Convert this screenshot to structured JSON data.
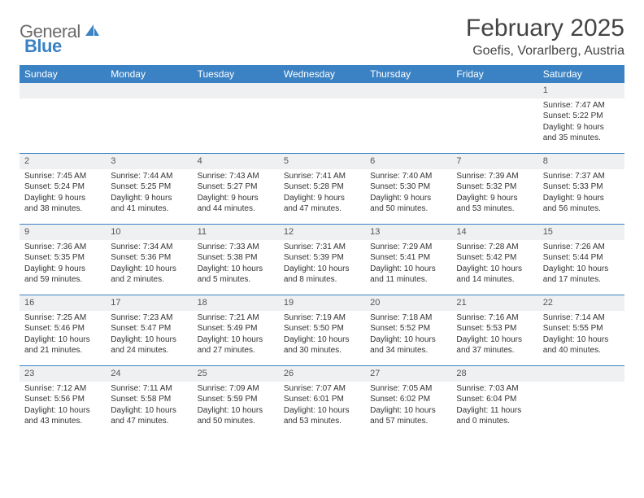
{
  "logo": {
    "textA": "General",
    "textB": "Blue"
  },
  "title": "February 2025",
  "location": "Goefis, Vorarlberg, Austria",
  "colors": {
    "header_bg": "#3b82c4",
    "header_text": "#ffffff",
    "daynum_bg": "#eef0f1",
    "border": "#3b82c4",
    "text": "#333333",
    "logo_gray": "#6b6b6b",
    "logo_blue": "#3b82c4"
  },
  "weekdays": [
    "Sunday",
    "Monday",
    "Tuesday",
    "Wednesday",
    "Thursday",
    "Friday",
    "Saturday"
  ],
  "weeks": [
    [
      null,
      null,
      null,
      null,
      null,
      null,
      {
        "n": "1",
        "sunrise": "Sunrise: 7:47 AM",
        "sunset": "Sunset: 5:22 PM",
        "day1": "Daylight: 9 hours",
        "day2": "and 35 minutes."
      }
    ],
    [
      {
        "n": "2",
        "sunrise": "Sunrise: 7:45 AM",
        "sunset": "Sunset: 5:24 PM",
        "day1": "Daylight: 9 hours",
        "day2": "and 38 minutes."
      },
      {
        "n": "3",
        "sunrise": "Sunrise: 7:44 AM",
        "sunset": "Sunset: 5:25 PM",
        "day1": "Daylight: 9 hours",
        "day2": "and 41 minutes."
      },
      {
        "n": "4",
        "sunrise": "Sunrise: 7:43 AM",
        "sunset": "Sunset: 5:27 PM",
        "day1": "Daylight: 9 hours",
        "day2": "and 44 minutes."
      },
      {
        "n": "5",
        "sunrise": "Sunrise: 7:41 AM",
        "sunset": "Sunset: 5:28 PM",
        "day1": "Daylight: 9 hours",
        "day2": "and 47 minutes."
      },
      {
        "n": "6",
        "sunrise": "Sunrise: 7:40 AM",
        "sunset": "Sunset: 5:30 PM",
        "day1": "Daylight: 9 hours",
        "day2": "and 50 minutes."
      },
      {
        "n": "7",
        "sunrise": "Sunrise: 7:39 AM",
        "sunset": "Sunset: 5:32 PM",
        "day1": "Daylight: 9 hours",
        "day2": "and 53 minutes."
      },
      {
        "n": "8",
        "sunrise": "Sunrise: 7:37 AM",
        "sunset": "Sunset: 5:33 PM",
        "day1": "Daylight: 9 hours",
        "day2": "and 56 minutes."
      }
    ],
    [
      {
        "n": "9",
        "sunrise": "Sunrise: 7:36 AM",
        "sunset": "Sunset: 5:35 PM",
        "day1": "Daylight: 9 hours",
        "day2": "and 59 minutes."
      },
      {
        "n": "10",
        "sunrise": "Sunrise: 7:34 AM",
        "sunset": "Sunset: 5:36 PM",
        "day1": "Daylight: 10 hours",
        "day2": "and 2 minutes."
      },
      {
        "n": "11",
        "sunrise": "Sunrise: 7:33 AM",
        "sunset": "Sunset: 5:38 PM",
        "day1": "Daylight: 10 hours",
        "day2": "and 5 minutes."
      },
      {
        "n": "12",
        "sunrise": "Sunrise: 7:31 AM",
        "sunset": "Sunset: 5:39 PM",
        "day1": "Daylight: 10 hours",
        "day2": "and 8 minutes."
      },
      {
        "n": "13",
        "sunrise": "Sunrise: 7:29 AM",
        "sunset": "Sunset: 5:41 PM",
        "day1": "Daylight: 10 hours",
        "day2": "and 11 minutes."
      },
      {
        "n": "14",
        "sunrise": "Sunrise: 7:28 AM",
        "sunset": "Sunset: 5:42 PM",
        "day1": "Daylight: 10 hours",
        "day2": "and 14 minutes."
      },
      {
        "n": "15",
        "sunrise": "Sunrise: 7:26 AM",
        "sunset": "Sunset: 5:44 PM",
        "day1": "Daylight: 10 hours",
        "day2": "and 17 minutes."
      }
    ],
    [
      {
        "n": "16",
        "sunrise": "Sunrise: 7:25 AM",
        "sunset": "Sunset: 5:46 PM",
        "day1": "Daylight: 10 hours",
        "day2": "and 21 minutes."
      },
      {
        "n": "17",
        "sunrise": "Sunrise: 7:23 AM",
        "sunset": "Sunset: 5:47 PM",
        "day1": "Daylight: 10 hours",
        "day2": "and 24 minutes."
      },
      {
        "n": "18",
        "sunrise": "Sunrise: 7:21 AM",
        "sunset": "Sunset: 5:49 PM",
        "day1": "Daylight: 10 hours",
        "day2": "and 27 minutes."
      },
      {
        "n": "19",
        "sunrise": "Sunrise: 7:19 AM",
        "sunset": "Sunset: 5:50 PM",
        "day1": "Daylight: 10 hours",
        "day2": "and 30 minutes."
      },
      {
        "n": "20",
        "sunrise": "Sunrise: 7:18 AM",
        "sunset": "Sunset: 5:52 PM",
        "day1": "Daylight: 10 hours",
        "day2": "and 34 minutes."
      },
      {
        "n": "21",
        "sunrise": "Sunrise: 7:16 AM",
        "sunset": "Sunset: 5:53 PM",
        "day1": "Daylight: 10 hours",
        "day2": "and 37 minutes."
      },
      {
        "n": "22",
        "sunrise": "Sunrise: 7:14 AM",
        "sunset": "Sunset: 5:55 PM",
        "day1": "Daylight: 10 hours",
        "day2": "and 40 minutes."
      }
    ],
    [
      {
        "n": "23",
        "sunrise": "Sunrise: 7:12 AM",
        "sunset": "Sunset: 5:56 PM",
        "day1": "Daylight: 10 hours",
        "day2": "and 43 minutes."
      },
      {
        "n": "24",
        "sunrise": "Sunrise: 7:11 AM",
        "sunset": "Sunset: 5:58 PM",
        "day1": "Daylight: 10 hours",
        "day2": "and 47 minutes."
      },
      {
        "n": "25",
        "sunrise": "Sunrise: 7:09 AM",
        "sunset": "Sunset: 5:59 PM",
        "day1": "Daylight: 10 hours",
        "day2": "and 50 minutes."
      },
      {
        "n": "26",
        "sunrise": "Sunrise: 7:07 AM",
        "sunset": "Sunset: 6:01 PM",
        "day1": "Daylight: 10 hours",
        "day2": "and 53 minutes."
      },
      {
        "n": "27",
        "sunrise": "Sunrise: 7:05 AM",
        "sunset": "Sunset: 6:02 PM",
        "day1": "Daylight: 10 hours",
        "day2": "and 57 minutes."
      },
      {
        "n": "28",
        "sunrise": "Sunrise: 7:03 AM",
        "sunset": "Sunset: 6:04 PM",
        "day1": "Daylight: 11 hours",
        "day2": "and 0 minutes."
      },
      null
    ]
  ]
}
